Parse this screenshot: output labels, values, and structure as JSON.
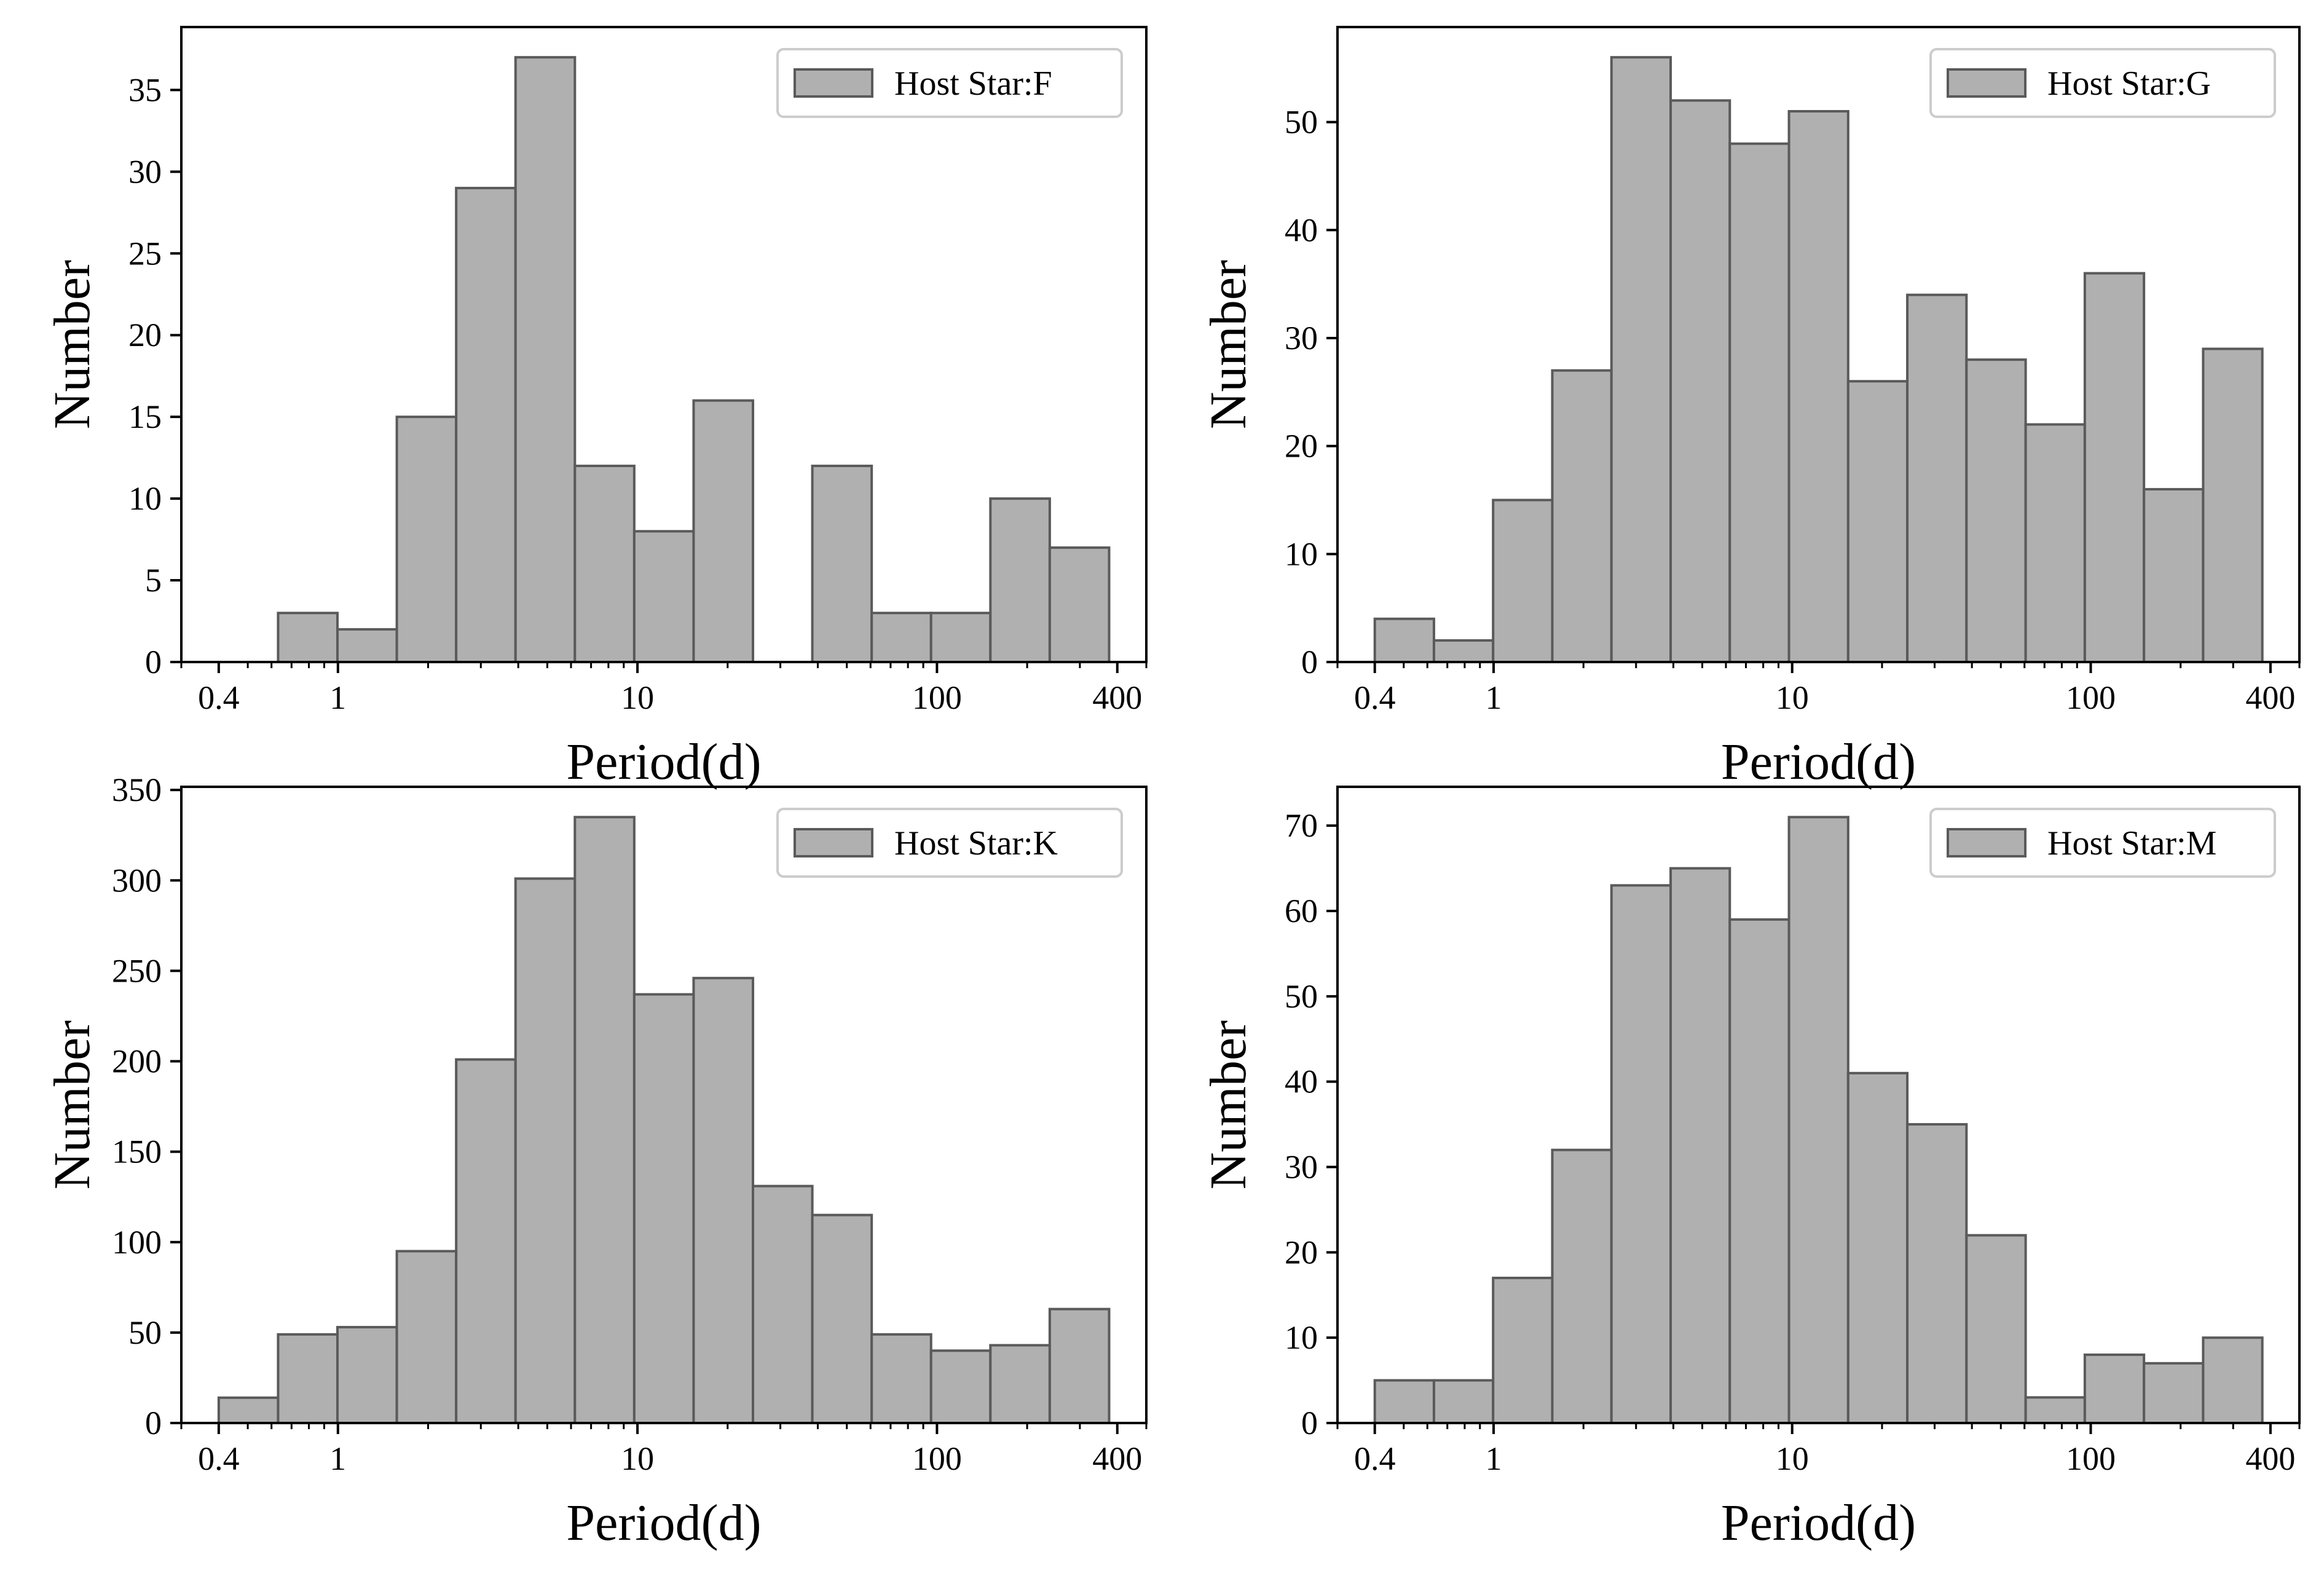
{
  "figure": {
    "background": "#ffffff"
  },
  "style": {
    "bar_fill": "#b0b0b0",
    "bar_edge": "#5a5a5a",
    "legend_edge": "#cccccc"
  },
  "chart_data": [
    {
      "type": "bar",
      "id": "F",
      "legend": "Host Star:F",
      "xlabel": "Period(d)",
      "ylabel": "Number",
      "xscale": "log",
      "xlim": [
        0.3,
        500
      ],
      "ylim": [
        0,
        38.85
      ],
      "xticks": [
        {
          "value": 0.4,
          "label": "0.4"
        },
        {
          "value": 1,
          "label": "1"
        },
        {
          "value": 10,
          "label": "10"
        },
        {
          "value": 100,
          "label": "100"
        },
        {
          "value": 400,
          "label": "400"
        }
      ],
      "yticks": [
        0,
        5,
        10,
        15,
        20,
        25,
        30,
        35
      ],
      "bin_edges": [
        0.4,
        0.6313,
        0.9963,
        1.5725,
        2.4818,
        3.917,
        6.182,
        9.7568,
        15.399,
        24.303,
        38.357,
        60.538,
        95.545,
        150.8,
        238.0,
        375.62
      ],
      "values": [
        0,
        3,
        2,
        15,
        29,
        37,
        12,
        8,
        16,
        0,
        12,
        3,
        3,
        10,
        7
      ],
      "legend_position": "top-right"
    },
    {
      "type": "bar",
      "id": "G",
      "legend": "Host Star:G",
      "xlabel": "Period(d)",
      "ylabel": "Number",
      "xscale": "log",
      "xlim": [
        0.3,
        500
      ],
      "ylim": [
        0,
        58.8
      ],
      "xticks": [
        {
          "value": 0.4,
          "label": "0.4"
        },
        {
          "value": 1,
          "label": "1"
        },
        {
          "value": 10,
          "label": "10"
        },
        {
          "value": 100,
          "label": "100"
        },
        {
          "value": 400,
          "label": "400"
        }
      ],
      "yticks": [
        0,
        10,
        20,
        30,
        40,
        50
      ],
      "bin_edges": [
        0.4,
        0.6313,
        0.9963,
        1.5725,
        2.4818,
        3.917,
        6.182,
        9.7568,
        15.399,
        24.303,
        38.357,
        60.538,
        95.545,
        150.8,
        238.0,
        375.62
      ],
      "values": [
        4,
        2,
        15,
        27,
        56,
        52,
        48,
        51,
        26,
        34,
        28,
        22,
        36,
        16,
        29
      ],
      "legend_position": "top-right"
    },
    {
      "type": "bar",
      "id": "K",
      "legend": "Host Star:K",
      "xlabel": "Period(d)",
      "ylabel": "Number",
      "xscale": "log",
      "xlim": [
        0.3,
        500
      ],
      "ylim": [
        0,
        351.75
      ],
      "xticks": [
        {
          "value": 0.4,
          "label": "0.4"
        },
        {
          "value": 1,
          "label": "1"
        },
        {
          "value": 10,
          "label": "10"
        },
        {
          "value": 100,
          "label": "100"
        },
        {
          "value": 400,
          "label": "400"
        }
      ],
      "yticks": [
        0,
        50,
        100,
        150,
        200,
        250,
        300,
        350
      ],
      "bin_edges": [
        0.4,
        0.6313,
        0.9963,
        1.5725,
        2.4818,
        3.917,
        6.182,
        9.7568,
        15.399,
        24.303,
        38.357,
        60.538,
        95.545,
        150.8,
        238.0,
        375.62
      ],
      "values": [
        14,
        49,
        53,
        95,
        201,
        301,
        335,
        237,
        246,
        131,
        115,
        49,
        40,
        43,
        63
      ],
      "legend_position": "top-right"
    },
    {
      "type": "bar",
      "id": "M",
      "legend": "Host Star:M",
      "xlabel": "Period(d)",
      "ylabel": "Number",
      "xscale": "log",
      "xlim": [
        0.3,
        500
      ],
      "ylim": [
        0,
        74.55
      ],
      "xticks": [
        {
          "value": 0.4,
          "label": "0.4"
        },
        {
          "value": 1,
          "label": "1"
        },
        {
          "value": 10,
          "label": "10"
        },
        {
          "value": 100,
          "label": "100"
        },
        {
          "value": 400,
          "label": "400"
        }
      ],
      "yticks": [
        0,
        10,
        20,
        30,
        40,
        50,
        60,
        70
      ],
      "bin_edges": [
        0.4,
        0.6313,
        0.9963,
        1.5725,
        2.4818,
        3.917,
        6.182,
        9.7568,
        15.399,
        24.303,
        38.357,
        60.538,
        95.545,
        150.8,
        238.0,
        375.62
      ],
      "values": [
        5,
        5,
        17,
        32,
        63,
        65,
        59,
        71,
        41,
        35,
        22,
        3,
        8,
        7,
        10
      ],
      "legend_position": "top-right"
    }
  ]
}
